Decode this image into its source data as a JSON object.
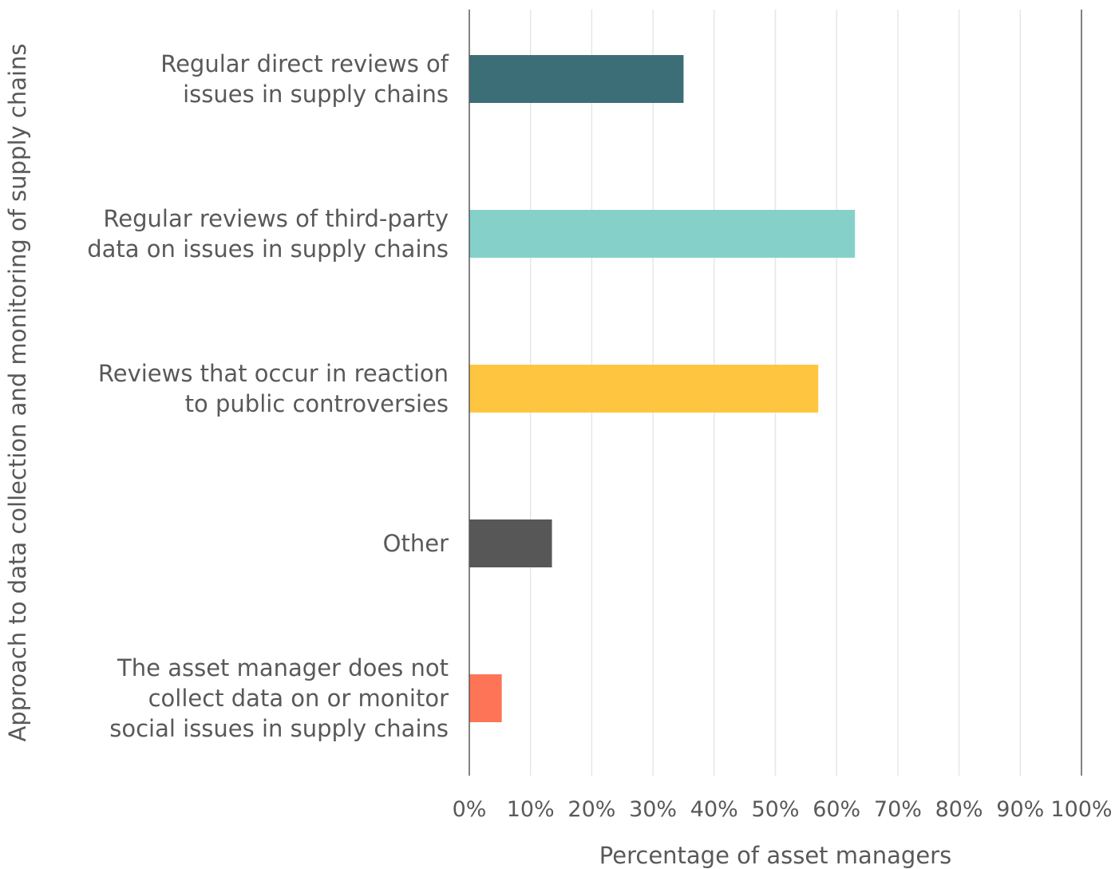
{
  "chart_data": {
    "type": "bar",
    "orientation": "horizontal",
    "categories": [
      [
        "Regular direct reviews of",
        "issues in supply chains"
      ],
      [
        "Regular reviews of third-party",
        "data on issues in supply chains"
      ],
      [
        "Reviews that occur in reaction",
        "to public controversies"
      ],
      [
        "Other"
      ],
      [
        "The asset manager does not",
        "collect data on or monitor",
        "social issues in supply chains"
      ]
    ],
    "values": [
      35,
      63,
      57,
      13.5,
      5.3
    ],
    "colors": [
      "#3c6e77",
      "#85d1ca",
      "#fec640",
      "#575757",
      "#fe7457"
    ],
    "xlabel": "Percentage of asset managers",
    "ylabel": "Approach to data collection and monitoring of supply chains",
    "xlim": [
      0,
      100
    ],
    "xticks": [
      "0%",
      "10%",
      "20%",
      "30%",
      "40%",
      "50%",
      "60%",
      "70%",
      "80%",
      "90%",
      "100%"
    ],
    "grid": true,
    "legend": "none"
  }
}
